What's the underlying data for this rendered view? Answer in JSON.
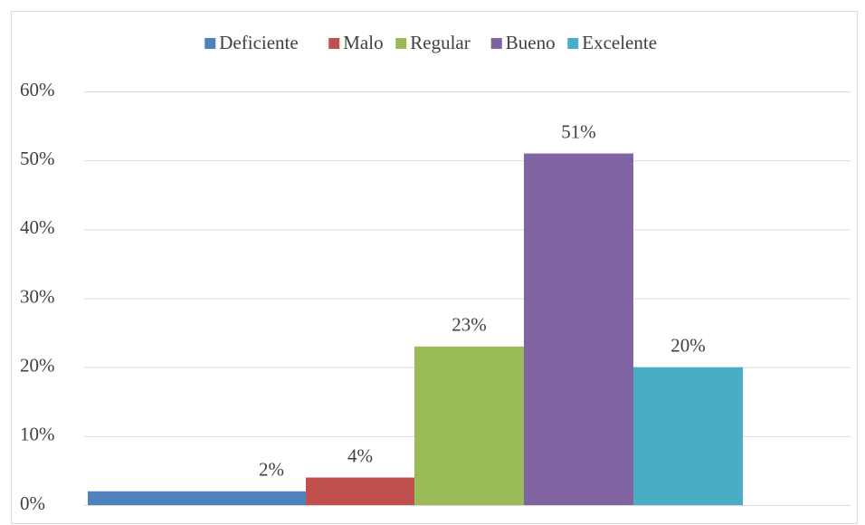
{
  "chart_data": {
    "type": "bar",
    "series": [
      {
        "name": "Deficiente",
        "color": "#4f81bd",
        "values": [
          2
        ],
        "value_labels": [
          "2%"
        ]
      },
      {
        "name": "Malo",
        "color": "#c0504d",
        "values": [
          4
        ],
        "value_labels": [
          "4%"
        ]
      },
      {
        "name": "Regular",
        "color": "#9bbb59",
        "values": [
          23
        ],
        "value_labels": [
          "23%"
        ]
      },
      {
        "name": "Bueno",
        "color": "#8064a2",
        "values": [
          51
        ],
        "value_labels": [
          "51%"
        ]
      },
      {
        "name": "Excelente",
        "color": "#4bacc6",
        "values": [
          20
        ],
        "value_labels": [
          "20%"
        ]
      }
    ],
    "ylim": [
      0,
      60
    ],
    "yticks": [
      {
        "value": 0,
        "label": "0%"
      },
      {
        "value": 10,
        "label": "10%"
      },
      {
        "value": 20,
        "label": "20%"
      },
      {
        "value": 30,
        "label": "30%"
      },
      {
        "value": 40,
        "label": "40%"
      },
      {
        "value": 50,
        "label": "50%"
      },
      {
        "value": 60,
        "label": "60%"
      }
    ],
    "grid": true,
    "legend": "top"
  }
}
